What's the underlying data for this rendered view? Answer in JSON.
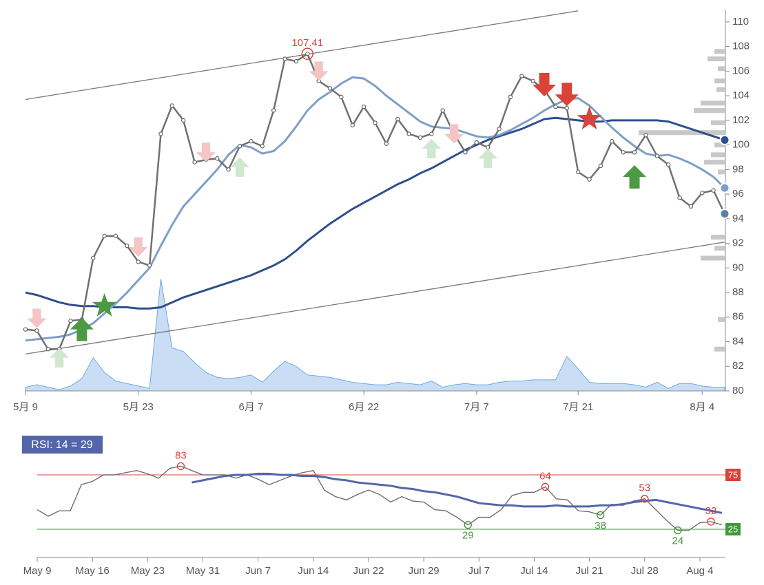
{
  "chart_data": [
    {
      "type": "line",
      "categories": [
        "5月 9",
        null,
        null,
        null,
        null,
        null,
        null,
        null,
        null,
        null,
        "5月 23",
        null,
        null,
        null,
        null,
        null,
        null,
        null,
        null,
        null,
        "6月 7",
        null,
        null,
        null,
        null,
        null,
        null,
        null,
        null,
        null,
        "6月 22",
        null,
        null,
        null,
        null,
        null,
        null,
        null,
        null,
        null,
        "7月 7",
        null,
        null,
        null,
        null,
        null,
        null,
        null,
        null,
        "7月 21",
        null,
        null,
        null,
        null,
        null,
        null,
        null,
        null,
        null,
        null,
        "8月 4",
        null,
        null
      ],
      "series": [
        {
          "color": "#707070",
          "values": [
            85.0,
            84.9,
            83.4,
            83.4,
            85.7,
            85.8,
            90.8,
            92.6,
            92.6,
            91.8,
            90.5,
            90.2,
            100.9,
            103.2,
            102.0,
            98.6,
            98.8,
            98.9,
            98.0,
            99.9,
            100.3,
            99.9,
            102.8,
            107.0,
            106.8,
            107.41,
            105.2,
            104.6,
            103.9,
            101.6,
            103.1,
            101.8,
            100.1,
            102.1,
            100.9,
            100.6,
            100.9,
            102.8,
            100.9,
            99.4,
            100.2,
            99.8,
            101.3,
            103.9,
            105.6,
            105.2,
            104.5,
            103.1,
            103.0,
            97.8,
            97.2,
            98.3,
            100.3,
            99.4,
            99.4,
            100.8,
            99.1,
            98.4,
            95.7,
            95.0,
            96.1,
            96.3,
            94.4
          ]
        },
        {
          "color": "#7e9ec9",
          "values": [
            84.1,
            84.2,
            84.3,
            84.4,
            84.6,
            85.0,
            85.5,
            86.3,
            87.1,
            88.0,
            89.0,
            90.0,
            91.8,
            93.5,
            95.0,
            96.0,
            97.0,
            98.0,
            99.2,
            100.0,
            99.8,
            99.3,
            99.5,
            100.3,
            101.5,
            102.8,
            103.7,
            104.3,
            105.0,
            105.5,
            105.4,
            104.8,
            104.0,
            103.3,
            102.6,
            101.9,
            101.5,
            101.4,
            101.3,
            101.0,
            100.7,
            100.6,
            100.8,
            101.2,
            101.7,
            102.2,
            102.8,
            103.3,
            103.7,
            103.8,
            103.2,
            102.3,
            101.4,
            100.6,
            99.9,
            99.3,
            99.1,
            99.2,
            98.9,
            98.5,
            98.0,
            97.4,
            96.5
          ]
        },
        {
          "color": "#2f4f8a",
          "values": [
            88.0,
            87.8,
            87.5,
            87.2,
            87.0,
            86.9,
            86.9,
            86.8,
            86.8,
            86.8,
            86.7,
            86.7,
            86.8,
            87.2,
            87.6,
            87.9,
            88.2,
            88.5,
            88.8,
            89.1,
            89.4,
            89.8,
            90.2,
            90.7,
            91.4,
            92.2,
            92.9,
            93.6,
            94.2,
            94.8,
            95.3,
            95.8,
            96.3,
            96.8,
            97.2,
            97.7,
            98.1,
            98.6,
            99.1,
            99.6,
            100.0,
            100.4,
            100.7,
            101.0,
            101.3,
            101.7,
            102.1,
            102.2,
            102.1,
            102.0,
            101.9,
            101.9,
            102.0,
            102.0,
            102.0,
            102.0,
            102.0,
            101.9,
            101.6,
            101.3,
            101.0,
            100.7,
            100.4
          ]
        }
      ],
      "volume": {
        "color": "#9cc3ec",
        "values": [
          80.3,
          80.5,
          80.3,
          80.1,
          80.4,
          81.0,
          82.7,
          81.5,
          80.8,
          80.6,
          80.4,
          80.2,
          89.1,
          83.5,
          83.2,
          82.3,
          81.5,
          81.1,
          81.0,
          81.1,
          81.3,
          80.7,
          81.6,
          82.4,
          82.0,
          81.3,
          81.2,
          81.1,
          80.9,
          80.7,
          80.6,
          80.5,
          80.5,
          80.7,
          80.6,
          80.5,
          80.8,
          80.3,
          80.5,
          80.6,
          80.5,
          80.5,
          80.7,
          80.8,
          80.8,
          80.9,
          80.9,
          80.9,
          82.8,
          81.8,
          80.7,
          80.6,
          80.6,
          80.6,
          80.5,
          80.3,
          80.7,
          80.2,
          80.6,
          80.6,
          80.4,
          80.3,
          80.3
        ]
      },
      "peak_index": 25,
      "ylim": [
        80,
        111
      ],
      "yticks": [
        80,
        82,
        84,
        86,
        88,
        90,
        92,
        94,
        96,
        98,
        100,
        102,
        104,
        106,
        108,
        110
      ],
      "trendlines": [
        {
          "x": [
            0,
            49
          ],
          "y": [
            103.7,
            110.9
          ]
        },
        {
          "x": [
            0,
            62
          ],
          "y": [
            83.0,
            92.1
          ]
        }
      ],
      "signals": [
        {
          "x": 1,
          "value": 85.9,
          "kind": "down",
          "color": "#f5c4c4"
        },
        {
          "x": 3,
          "value": 82.7,
          "kind": "up",
          "color": "#cfe8cf"
        },
        {
          "x": 5,
          "value": 85.0,
          "kind": "up",
          "color": "#4c9a42"
        },
        {
          "x": 7,
          "value": 86.9,
          "kind": "star",
          "color": "#4c9a42"
        },
        {
          "x": 10,
          "value": 91.7,
          "kind": "down",
          "color": "#f5c4c4"
        },
        {
          "x": 16,
          "value": 99.4,
          "kind": "down",
          "color": "#f5c4c4"
        },
        {
          "x": 19,
          "value": 98.2,
          "kind": "up",
          "color": "#cfe8cf"
        },
        {
          "x": 26,
          "value": 106.0,
          "kind": "down",
          "color": "#f5c4c4"
        },
        {
          "x": 36,
          "value": 99.7,
          "kind": "up",
          "color": "#cfe8cf"
        },
        {
          "x": 38,
          "value": 100.9,
          "kind": "down",
          "color": "#f5c4c4"
        },
        {
          "x": 41,
          "value": 98.9,
          "kind": "up",
          "color": "#cfe8cf"
        },
        {
          "x": 46,
          "value": 104.9,
          "kind": "down",
          "color": "#d9433a"
        },
        {
          "x": 48,
          "value": 104.1,
          "kind": "down",
          "color": "#d9433a"
        },
        {
          "x": 50,
          "value": 102.1,
          "kind": "star",
          "color": "#d9433a"
        },
        {
          "x": 54,
          "value": 97.4,
          "kind": "up",
          "color": "#4c9a42"
        }
      ],
      "profile": {
        "color": "#c8c8c8",
        "levels": [
          107.6,
          107.0,
          106.2,
          105.2,
          104.5,
          103.4,
          102.8,
          101.8,
          101.0,
          100.0,
          99.2,
          98.6,
          97.8,
          92.5,
          91.6,
          90.8,
          85.8,
          83.4
        ],
        "sizes": [
          15,
          25,
          10,
          15,
          12,
          35,
          45,
          20,
          125,
          15,
          20,
          30,
          10,
          20,
          15,
          35,
          10,
          15
        ]
      }
    },
    {
      "type": "line",
      "title": "RSI: 14 = 29",
      "categories": [
        "May 9",
        null,
        null,
        null,
        null,
        "May 16",
        null,
        null,
        null,
        null,
        "May 23",
        null,
        null,
        null,
        null,
        "May 31",
        null,
        null,
        null,
        null,
        "Jun 7",
        null,
        null,
        null,
        null,
        "Jun 14",
        null,
        null,
        null,
        null,
        "Jun 22",
        null,
        null,
        null,
        null,
        "Jun 29",
        null,
        null,
        null,
        null,
        "Jul 7",
        null,
        null,
        null,
        null,
        "Jul 14",
        null,
        null,
        null,
        null,
        "Jul 21",
        null,
        null,
        null,
        null,
        "Jul 28",
        null,
        null,
        null,
        null,
        "Aug 4",
        null,
        null
      ],
      "series": [
        {
          "color": "#6e6e6e",
          "values": [
            43,
            37,
            42,
            42,
            66,
            69,
            75,
            75,
            77,
            79,
            76,
            72,
            81,
            83,
            79,
            75,
            75,
            75,
            72,
            75,
            71,
            66,
            70,
            74,
            77,
            79,
            61,
            55,
            52,
            57,
            61,
            57,
            50,
            55,
            51,
            50,
            43,
            42,
            36,
            29,
            36,
            36,
            43,
            56,
            59,
            59,
            64,
            53,
            52,
            42,
            41,
            38,
            48,
            47,
            51,
            53,
            43,
            33,
            24,
            24,
            31,
            32,
            29
          ]
        },
        {
          "color": "#5465aa",
          "values": [
            null,
            null,
            null,
            null,
            null,
            null,
            null,
            null,
            null,
            null,
            null,
            null,
            null,
            null,
            68,
            70,
            72,
            74,
            75,
            75,
            76,
            76,
            75,
            75,
            74,
            74,
            73,
            71,
            70,
            68,
            67,
            66,
            65,
            63,
            62,
            60,
            59,
            57,
            55,
            52,
            49,
            48,
            47,
            47,
            46,
            46,
            46,
            47,
            46,
            46,
            46,
            47,
            47,
            48,
            50,
            51,
            52,
            50,
            48,
            46,
            44,
            42,
            40
          ]
        }
      ],
      "peaks": [
        13,
        46,
        55,
        61
      ],
      "troughs": [
        39,
        51,
        58
      ],
      "ylim": [
        0,
        100
      ],
      "upper": 75,
      "upper_color": "#d9433a",
      "lower": 25,
      "lower_color": "#3f9a3a"
    }
  ]
}
